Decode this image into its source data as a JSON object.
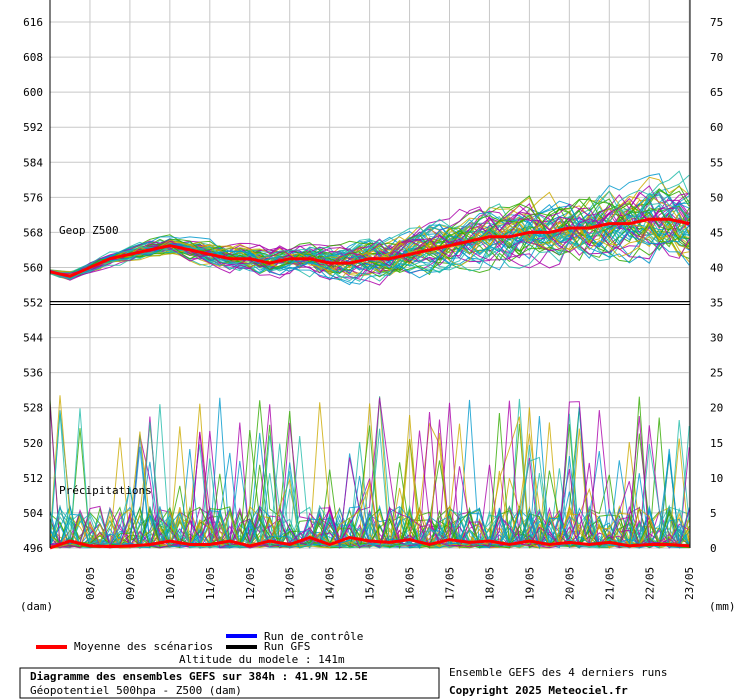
{
  "chart_data": {
    "type": "line",
    "title": "Diagramme des ensembles GEFS sur 384h : 41.9N 12.5E",
    "subtitle": "Géopotentiel 500hpa - Z500 (dam)",
    "left_axis": {
      "unit": "(dam)",
      "ticks": [
        616,
        608,
        600,
        592,
        584,
        576,
        568,
        560,
        552,
        544,
        536,
        528,
        520,
        512,
        504,
        496
      ],
      "range": [
        496,
        616
      ]
    },
    "right_axis": {
      "unit": "(mm)",
      "ticks": [
        75,
        70,
        65,
        60,
        55,
        50,
        45,
        40,
        35,
        30,
        25,
        20,
        15,
        10,
        5,
        0
      ],
      "range": [
        0,
        75
      ]
    },
    "x_categories": [
      "08/05",
      "09/05",
      "10/05",
      "11/05",
      "12/05",
      "13/05",
      "14/05",
      "15/05",
      "16/05",
      "17/05",
      "18/05",
      "19/05",
      "20/05",
      "21/05",
      "22/05",
      "23/05"
    ],
    "x_range_days": [
      0,
      16
    ],
    "annotations": {
      "geop": "Geop Z500",
      "precip": "Précipitations"
    },
    "legend": {
      "control": "Run de contrôle",
      "gfs": "Run GFS",
      "mean": "Moyenne des scénarios"
    },
    "footer": {
      "altitude": "Altitude du modele : 141m",
      "ensemble_note": "Ensemble GEFS des 4 derniers runs",
      "copyright": "Copyright 2025 Meteociel.fr"
    },
    "colors": {
      "mean": "#ff0000",
      "control": "#0000ff",
      "gfs": "#000000",
      "members": [
        "#33aa00",
        "#ccaa00",
        "#aa00aa",
        "#0099cc",
        "#22bbaa"
      ]
    },
    "series": [
      {
        "name": "Moyenne des scénarios",
        "role": "geop_mean",
        "x": [
          0,
          0.5,
          1,
          1.5,
          2,
          2.5,
          3,
          3.5,
          4,
          4.5,
          5,
          5.5,
          6,
          6.5,
          7,
          7.5,
          8,
          8.5,
          9,
          9.5,
          10,
          10.5,
          11,
          11.5,
          12,
          12.5,
          13,
          13.5,
          14,
          14.5,
          15,
          15.5,
          16
        ],
        "values": [
          559,
          558,
          560,
          562,
          563,
          564,
          565,
          564,
          563,
          562,
          562,
          561,
          562,
          562,
          561,
          561,
          562,
          562,
          563,
          564,
          565,
          566,
          567,
          567,
          568,
          568,
          569,
          569,
          570,
          570,
          571,
          571,
          570
        ]
      },
      {
        "name": "Moyenne des scénarios",
        "role": "precip_mean",
        "x": [
          0,
          0.5,
          1,
          1.5,
          2,
          2.5,
          3,
          3.5,
          4,
          4.5,
          5,
          5.5,
          6,
          6.5,
          7,
          7.5,
          8,
          8.5,
          9,
          9.5,
          10,
          10.5,
          11,
          11.5,
          12,
          12.5,
          13,
          13.5,
          14,
          14.5,
          15,
          15.5,
          16
        ],
        "values": [
          0,
          1,
          0.3,
          0.2,
          0.3,
          0.5,
          1,
          0.5,
          0.5,
          1,
          0.3,
          1,
          0.5,
          1.5,
          0.5,
          1.5,
          1,
          0.8,
          1.2,
          0.5,
          1.2,
          0.8,
          1,
          0.5,
          1,
          0.5,
          0.8,
          0.5,
          0.8,
          0.3,
          0.5,
          0.5,
          0.3
        ]
      }
    ]
  }
}
